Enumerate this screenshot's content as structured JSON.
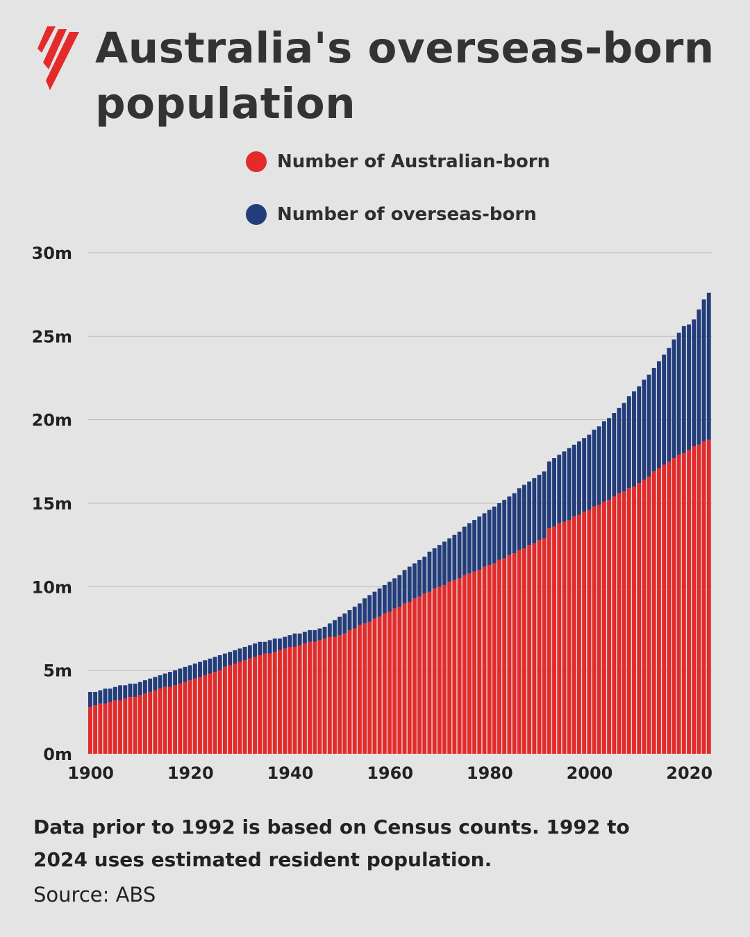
{
  "brand": {
    "logo_icon": "sbs-logo-icon",
    "color": "#e32b2b"
  },
  "title": "Australia's overseas-born population",
  "title_lines": [
    "Australia's overseas-born",
    "population"
  ],
  "footnote": {
    "lines": [
      "Data prior to 1992 is based on Census counts. 1992 to",
      "2024 uses estimated resident population."
    ],
    "source": "Source: ABS"
  },
  "chart_data": {
    "type": "bar",
    "stacked": true,
    "x_range": [
      1900,
      2024
    ],
    "xticks": [
      "1900",
      "1920",
      "1940",
      "1960",
      "1980",
      "2000",
      "2020"
    ],
    "xtick_values": [
      1900,
      1920,
      1940,
      1960,
      1980,
      2000,
      2020
    ],
    "ylim": [
      0,
      30
    ],
    "yticks": [
      "0m",
      "5m",
      "10m",
      "15m",
      "20m",
      "25m",
      "30m"
    ],
    "ytick_values": [
      0,
      5,
      10,
      15,
      20,
      25,
      30
    ],
    "grid": true,
    "legend_placement": "top-center",
    "series": [
      {
        "name": "Number of Australian-born",
        "color": "#e32b2b",
        "values": [
          2.8,
          2.9,
          3.0,
          3.0,
          3.1,
          3.2,
          3.2,
          3.3,
          3.4,
          3.4,
          3.5,
          3.6,
          3.7,
          3.8,
          3.9,
          4.0,
          4.0,
          4.1,
          4.2,
          4.3,
          4.4,
          4.5,
          4.6,
          4.7,
          4.8,
          4.9,
          5.0,
          5.2,
          5.3,
          5.4,
          5.5,
          5.6,
          5.7,
          5.8,
          5.9,
          6.0,
          6.0,
          6.1,
          6.2,
          6.3,
          6.4,
          6.4,
          6.5,
          6.6,
          6.7,
          6.7,
          6.8,
          6.9,
          7.0,
          7.0,
          7.1,
          7.2,
          7.4,
          7.5,
          7.7,
          7.8,
          7.9,
          8.1,
          8.2,
          8.4,
          8.5,
          8.7,
          8.8,
          9.0,
          9.1,
          9.3,
          9.4,
          9.6,
          9.7,
          9.9,
          10.0,
          10.1,
          10.3,
          10.4,
          10.5,
          10.7,
          10.8,
          10.9,
          11.0,
          11.2,
          11.3,
          11.4,
          11.6,
          11.7,
          11.9,
          12.0,
          12.2,
          12.3,
          12.5,
          12.6,
          12.8,
          12.9,
          13.5,
          13.6,
          13.8,
          13.9,
          14.0,
          14.2,
          14.3,
          14.5,
          14.6,
          14.8,
          14.9,
          15.1,
          15.2,
          15.4,
          15.6,
          15.7,
          15.9,
          16.0,
          16.2,
          16.4,
          16.6,
          16.9,
          17.1,
          17.3,
          17.5,
          17.7,
          17.9,
          18.0,
          18.2,
          18.4,
          18.5,
          18.7,
          18.8
        ]
      },
      {
        "name": "Number of overseas-born",
        "color": "#233d7a",
        "values": [
          0.9,
          0.8,
          0.8,
          0.9,
          0.8,
          0.8,
          0.9,
          0.8,
          0.8,
          0.8,
          0.8,
          0.8,
          0.8,
          0.8,
          0.8,
          0.8,
          0.9,
          0.9,
          0.9,
          0.9,
          0.9,
          0.9,
          0.9,
          0.9,
          0.9,
          0.9,
          0.9,
          0.8,
          0.8,
          0.8,
          0.8,
          0.8,
          0.8,
          0.8,
          0.8,
          0.7,
          0.8,
          0.8,
          0.7,
          0.7,
          0.7,
          0.8,
          0.7,
          0.7,
          0.7,
          0.7,
          0.7,
          0.7,
          0.8,
          1.0,
          1.1,
          1.2,
          1.2,
          1.3,
          1.3,
          1.5,
          1.6,
          1.6,
          1.7,
          1.7,
          1.8,
          1.8,
          1.9,
          2.0,
          2.1,
          2.1,
          2.2,
          2.2,
          2.4,
          2.4,
          2.5,
          2.6,
          2.6,
          2.7,
          2.8,
          2.9,
          3.0,
          3.1,
          3.2,
          3.2,
          3.3,
          3.4,
          3.4,
          3.5,
          3.5,
          3.6,
          3.7,
          3.8,
          3.8,
          3.9,
          3.9,
          4.0,
          4.0,
          4.1,
          4.1,
          4.2,
          4.3,
          4.3,
          4.4,
          4.4,
          4.5,
          4.6,
          4.7,
          4.8,
          4.9,
          5.0,
          5.1,
          5.3,
          5.5,
          5.7,
          5.8,
          6.0,
          6.1,
          6.2,
          6.4,
          6.6,
          6.8,
          7.1,
          7.3,
          7.6,
          7.5,
          7.6,
          8.1,
          8.5,
          8.8
        ]
      }
    ]
  }
}
